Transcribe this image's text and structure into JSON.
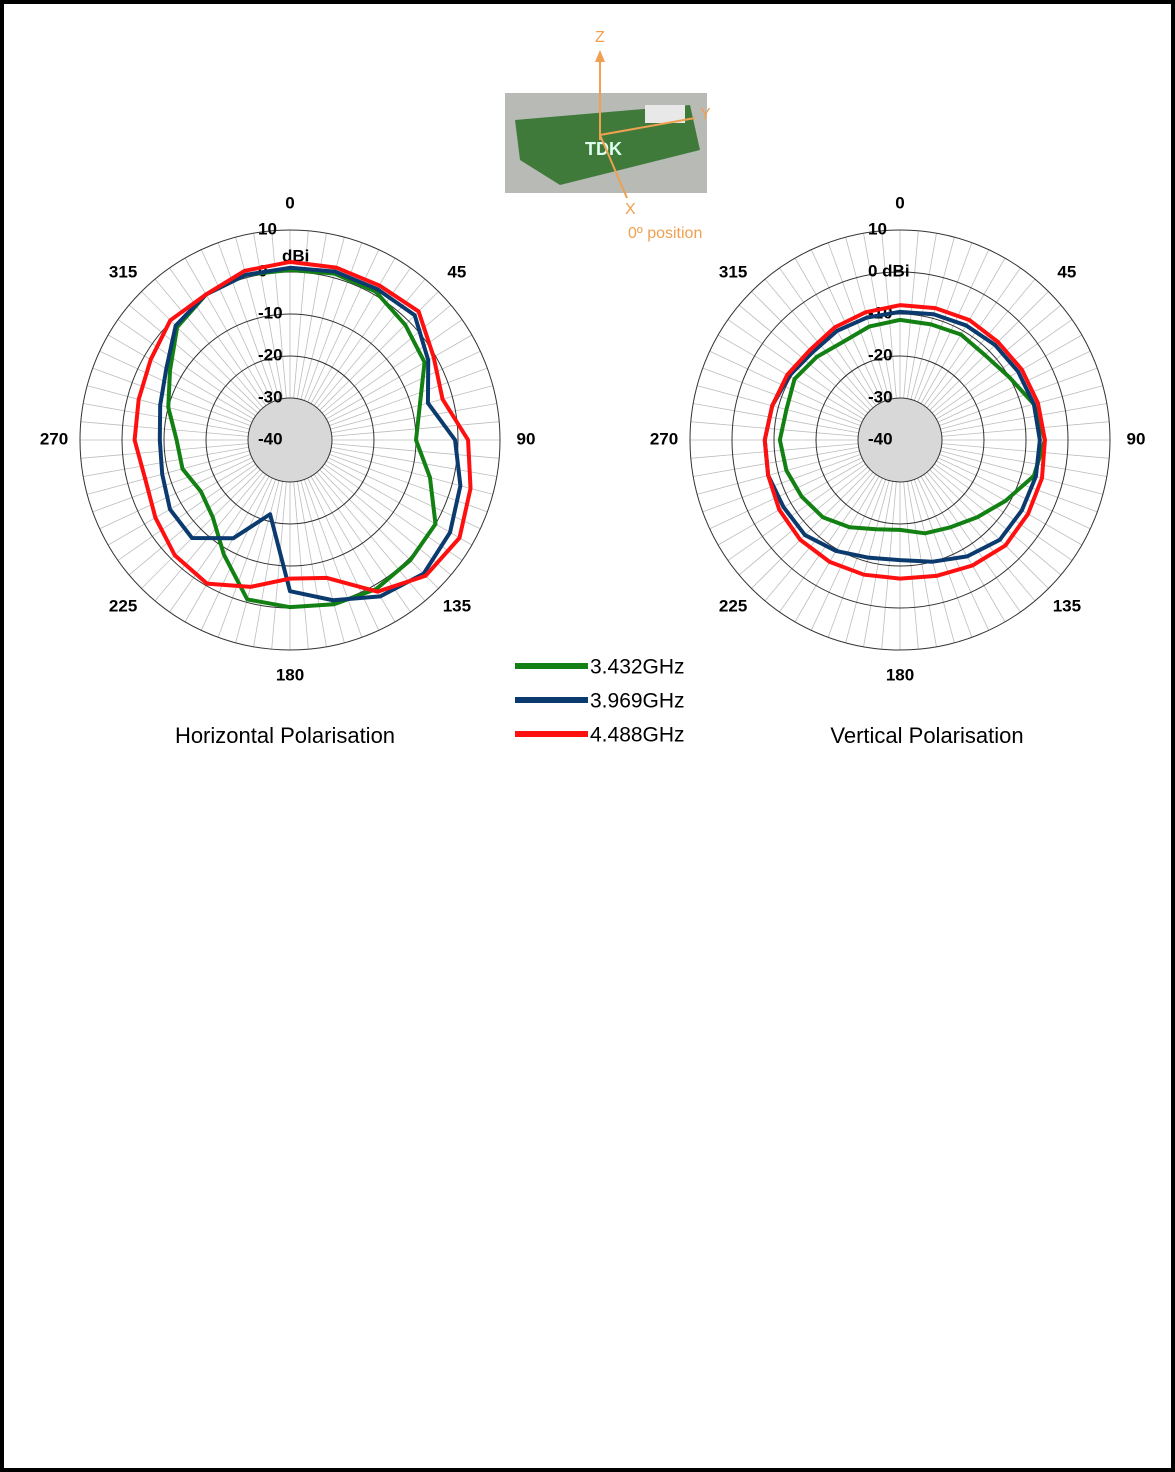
{
  "chart_data": [
    {
      "type": "polar",
      "title": "Horizontal Polarisation",
      "unit": "dBi",
      "theta": [
        0,
        15,
        30,
        45,
        60,
        75,
        90,
        105,
        120,
        135,
        150,
        165,
        180,
        195,
        210,
        225,
        240,
        255,
        270,
        285,
        300,
        315,
        330,
        345
      ],
      "thetaticks": [
        0,
        45,
        90,
        135,
        180,
        225,
        270,
        315
      ],
      "rlim": [
        -40,
        10
      ],
      "rticks": [
        -40,
        -30,
        -20,
        -10,
        0,
        10
      ],
      "series": [
        {
          "name": "3.432GHz",
          "color": "#138013",
          "values": [
            0.5,
            1,
            0.8,
            -1.2,
            -3,
            -8,
            -10,
            -5.5,
            0,
            0.5,
            1,
            0.5,
            -0.2,
            -0.7,
            -8.5,
            -14,
            -15.5,
            -13.5,
            -13,
            -10,
            -7,
            -2,
            0,
            0.7
          ]
        },
        {
          "name": "3.969GHz",
          "color": "#0b3a6e",
          "values": [
            1,
            1.5,
            1.5,
            2,
            -2,
            -6,
            -0.7,
            2,
            4,
            5,
            3,
            -0.5,
            -4,
            -21.7,
            -13,
            -7,
            -7,
            -8.5,
            -9,
            -8,
            -6,
            -1.5,
            0,
            0.7
          ]
        },
        {
          "name": "4.488GHz",
          "color": "#ff1010",
          "values": [
            2.4,
            2.5,
            2.5,
            3.3,
            -0.5,
            -2.4,
            2.4,
            4.5,
            6.6,
            5.7,
            1.7,
            -6,
            -7,
            -3.8,
            -0.5,
            -1.2,
            -3,
            -4.3,
            -3,
            -2.7,
            -1.7,
            0.3,
            0,
            1.7
          ]
        }
      ]
    },
    {
      "type": "polar",
      "title": "Vertical Polarisation",
      "theta": [
        0,
        15,
        30,
        45,
        60,
        75,
        90,
        105,
        120,
        135,
        150,
        165,
        180,
        195,
        210,
        225,
        240,
        255,
        270,
        285,
        300,
        315,
        330,
        345
      ],
      "thetaticks": [
        0,
        45,
        90,
        135,
        180,
        225,
        270,
        315
      ],
      "rlim": [
        -40,
        10
      ],
      "rticks": [
        -40,
        -30,
        -20,
        -10,
        {
          "value": 0,
          "label": "0 dBi"
        },
        10
      ],
      "series": [
        {
          "color": "#138013",
          "values": [
            -11.4,
            -11.5,
            -11,
            -11.4,
            -10,
            -7,
            -5.5,
            -7,
            -11,
            -14,
            -16,
            -17,
            -18.6,
            -18,
            -16,
            -14,
            -13,
            -12,
            -11.4,
            -12,
            -11,
            -12,
            -13,
            -12
          ]
        },
        {
          "color": "#0b3a6e",
          "values": [
            -9.5,
            -9,
            -8.5,
            -8,
            -7.5,
            -7,
            -6.7,
            -6.5,
            -6.5,
            -6.4,
            -8,
            -10,
            -11.4,
            -11,
            -9.5,
            -8,
            -8,
            -7.5,
            -7.8,
            -8.5,
            -9.5,
            -10.5,
            -10,
            -9.8
          ]
        },
        {
          "color": "#ff1010",
          "values": [
            -7.9,
            -7.5,
            -7,
            -7,
            -6.5,
            -6,
            -5.5,
            -5,
            -4.8,
            -4.5,
            -5.5,
            -6.5,
            -7,
            -6.8,
            -6.5,
            -6.4,
            -6.8,
            -7.5,
            -7.8,
            -8.5,
            -9,
            -9.7,
            -9,
            -8.5
          ]
        }
      ]
    }
  ],
  "photo": {
    "axis_z": "Z",
    "axis_y": "Y",
    "axis_x": "X",
    "caption": "0º position",
    "board": "TDK"
  }
}
